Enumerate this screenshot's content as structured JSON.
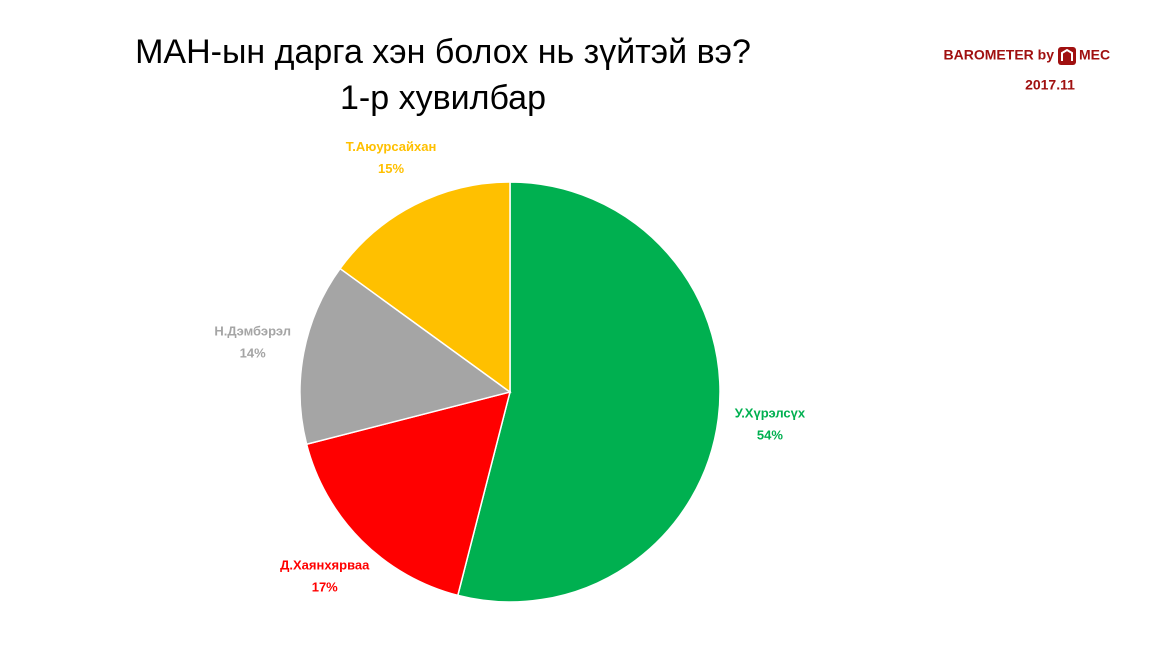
{
  "chart_data": {
    "type": "pie",
    "title": [
      "МАН-ын дарга хэн болох нь зүйтэй вэ?",
      "1-р хувилбар"
    ],
    "source": "BAROMETER by",
    "source_brand": "MEC",
    "date": "2017.11",
    "categories": [
      "У.Хүрэлсүх",
      "Д.Хаянхярваа",
      "Н.Дэмбэрэл",
      "Т.Аюурсайхан"
    ],
    "values": [
      54,
      17,
      14,
      15
    ],
    "value_labels": [
      "54%",
      "17%",
      "14%",
      "15%"
    ],
    "colors": [
      "#00b050",
      "#ff0000",
      "#a5a5a5",
      "#ffc000"
    ]
  }
}
